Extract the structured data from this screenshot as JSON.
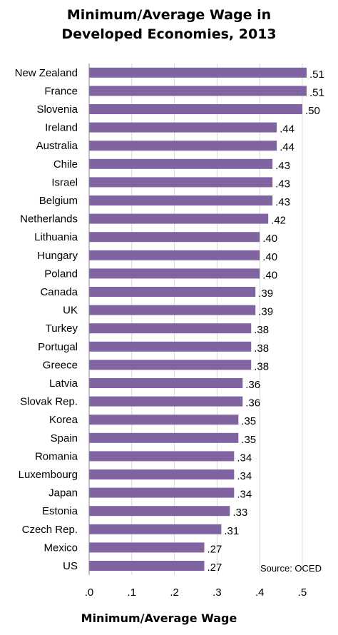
{
  "chart_data": {
    "type": "bar",
    "orientation": "horizontal",
    "title_lines": [
      "Minimum/Average Wage in",
      "Developed Economies, 2013"
    ],
    "xlabel": "Minimum/Average  Wage",
    "source": "Source: OCED",
    "xlim": [
      0,
      0.55
    ],
    "xticks": [
      0,
      0.1,
      0.2,
      0.3,
      0.4,
      0.5
    ],
    "xtick_labels": [
      ".0",
      ".1",
      ".2",
      ".3",
      ".4",
      ".5"
    ],
    "grid": "vertical",
    "bar_color": "#8064a2",
    "categories": [
      "New Zealand",
      "France",
      "Slovenia",
      "Ireland",
      "Australia",
      "Chile",
      "Israel",
      "Belgium",
      "Netherlands",
      "Lithuania",
      "Hungary",
      "Poland",
      "Canada",
      "UK",
      "Turkey",
      "Portugal",
      "Greece",
      "Latvia",
      "Slovak Rep.",
      "Korea",
      "Spain",
      "Romania",
      "Luxembourg",
      "Japan",
      "Estonia",
      "Czech Rep.",
      "Mexico",
      "US"
    ],
    "values": [
      0.51,
      0.51,
      0.5,
      0.44,
      0.44,
      0.43,
      0.43,
      0.43,
      0.42,
      0.4,
      0.4,
      0.4,
      0.39,
      0.39,
      0.38,
      0.38,
      0.38,
      0.36,
      0.36,
      0.35,
      0.35,
      0.34,
      0.34,
      0.34,
      0.33,
      0.31,
      0.27,
      0.27
    ],
    "value_labels": [
      ".51",
      ".51",
      ".50",
      ".44",
      ".44",
      ".43",
      ".43",
      ".43",
      ".42",
      ".40",
      ".40",
      ".40",
      ".39",
      ".39",
      ".38",
      ".38",
      ".38",
      ".36",
      ".36",
      ".35",
      ".35",
      ".34",
      ".34",
      ".34",
      ".33",
      ".31",
      ".27",
      ".27"
    ]
  }
}
